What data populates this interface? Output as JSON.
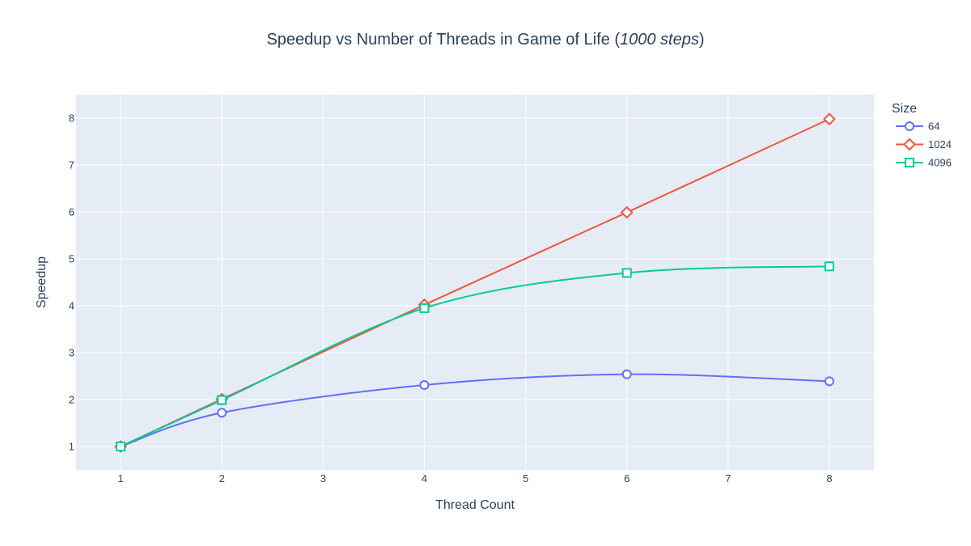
{
  "chart_data": {
    "type": "line",
    "title": "Speedup vs Number of Threads in Game of Life (",
    "title_italic": "1000 steps",
    "title_suffix": ")",
    "xlabel": "Thread Count",
    "ylabel": "Speedup",
    "xlim": [
      0.56,
      8.44
    ],
    "ylim": [
      0.5,
      8.5
    ],
    "x_ticks": [
      1,
      2,
      3,
      4,
      5,
      6,
      7,
      8
    ],
    "y_ticks": [
      1,
      2,
      3,
      4,
      5,
      6,
      7,
      8
    ],
    "grid": true,
    "legend_title": "Size",
    "legend_position": "top-right",
    "series": [
      {
        "name": "64",
        "color": "#636efa",
        "marker": "circle",
        "x": [
          1,
          2,
          4,
          6,
          8
        ],
        "y": [
          1.0,
          1.72,
          2.31,
          2.54,
          2.39
        ]
      },
      {
        "name": "1024",
        "color": "#ef553b",
        "marker": "diamond",
        "x": [
          1,
          2,
          4,
          6,
          8
        ],
        "y": [
          1.0,
          2.01,
          4.02,
          5.99,
          7.98
        ]
      },
      {
        "name": "4096",
        "color": "#00cc96",
        "marker": "square",
        "x": [
          1,
          2,
          4,
          6,
          8
        ],
        "y": [
          1.0,
          1.99,
          3.95,
          4.7,
          4.84
        ]
      }
    ]
  }
}
